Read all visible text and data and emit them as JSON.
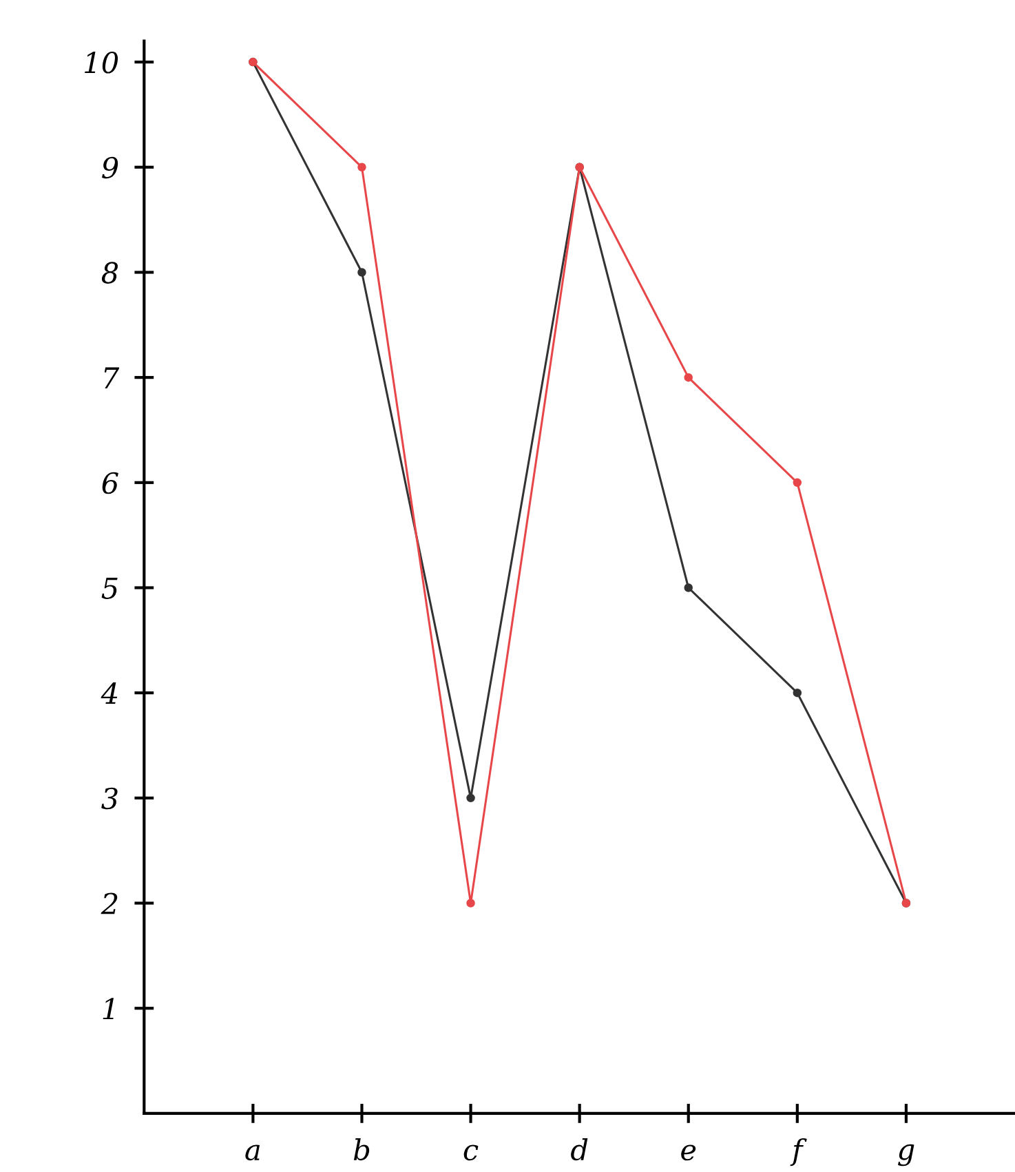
{
  "chart_data": {
    "type": "line",
    "categories": [
      "a",
      "b",
      "c",
      "d",
      "e",
      "f",
      "g"
    ],
    "series": [
      {
        "color": "#333333",
        "values": [
          10,
          8,
          3,
          9,
          5,
          4,
          2
        ]
      },
      {
        "color": "#e8474a",
        "values": [
          10,
          9,
          2,
          9,
          7,
          6,
          2
        ]
      }
    ],
    "ylim": [
      0,
      10.2
    ],
    "yticks": [
      1,
      2,
      3,
      4,
      5,
      6,
      7,
      8,
      9,
      10
    ],
    "marker": "circle",
    "line_style": "solid",
    "grid": false
  }
}
